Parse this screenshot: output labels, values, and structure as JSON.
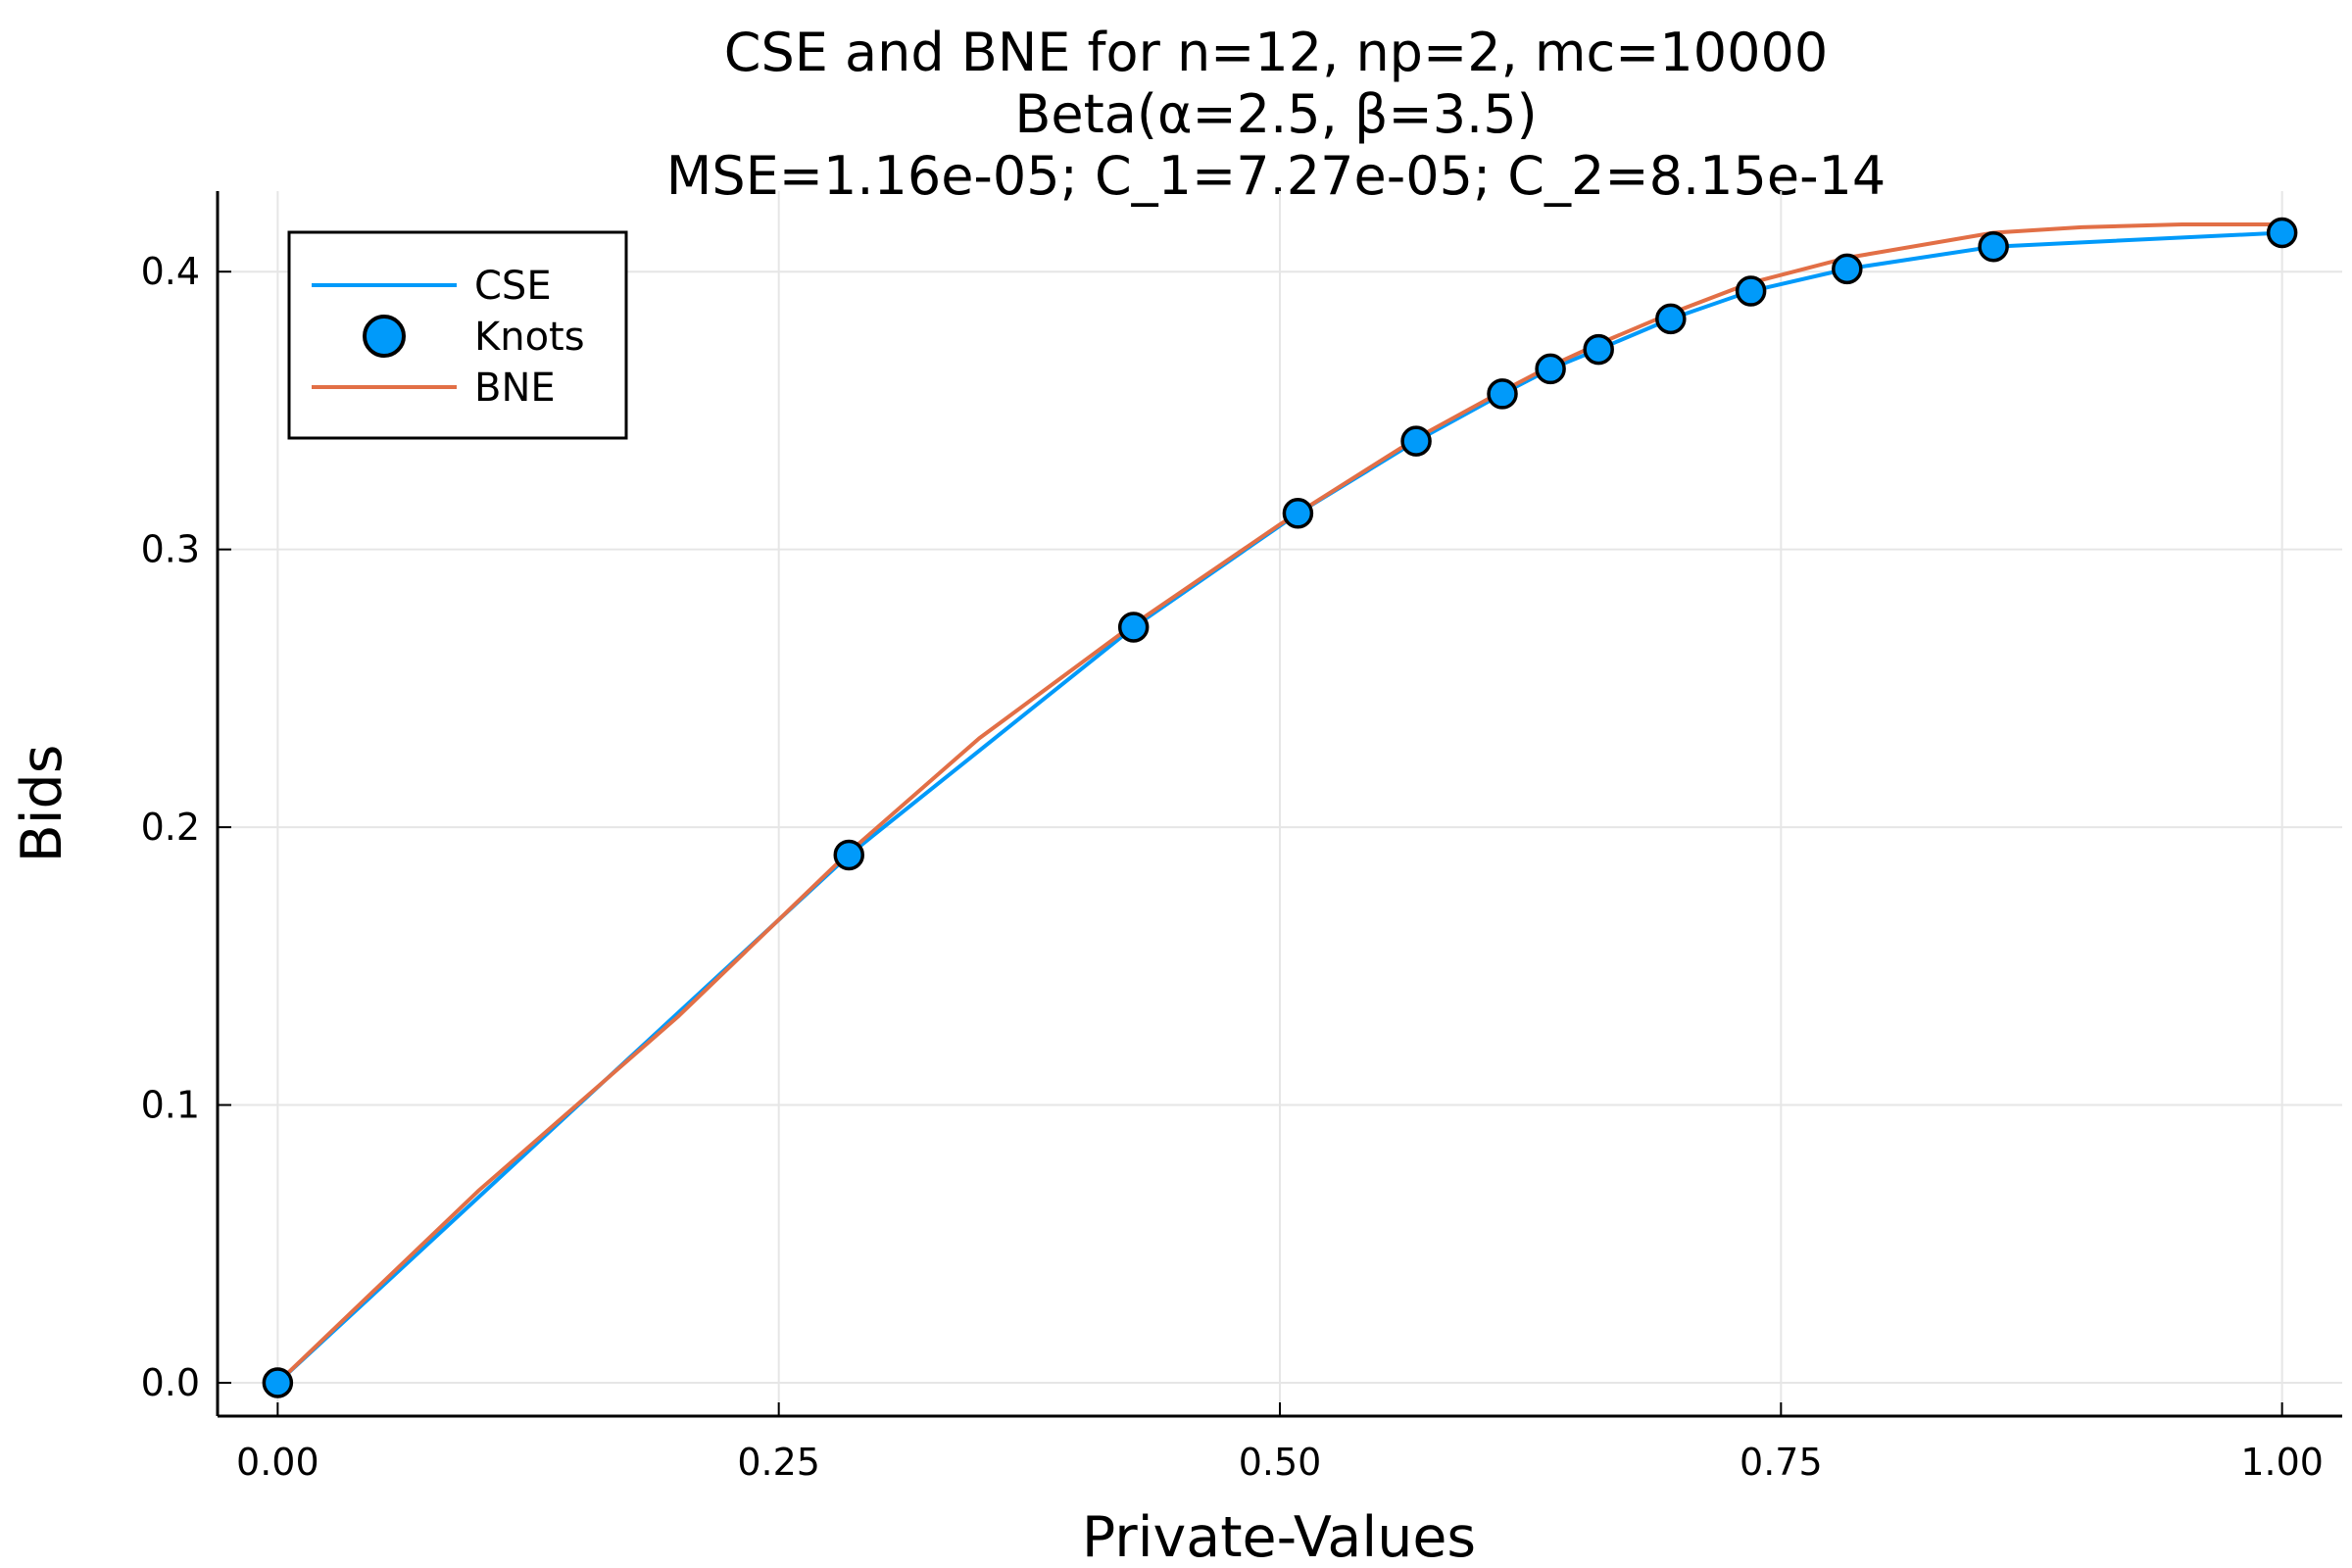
{
  "chart_data": {
    "type": "line",
    "title_lines": [
      "CSE and BNE for n=12, np=2, mc=10000",
      "Beta(α=2.5, β=3.5)",
      "MSE=1.16e-05; C_1=7.27e-05; C_2=8.15e-14"
    ],
    "xlabel": "Private-Values",
    "ylabel": "Bids",
    "xlim": [
      -0.03,
      1.03
    ],
    "ylim": [
      -0.012,
      0.429
    ],
    "xticks": [
      0.0,
      0.25,
      0.5,
      0.75,
      1.0
    ],
    "xtick_labels": [
      "0.00",
      "0.25",
      "0.50",
      "0.75",
      "1.00"
    ],
    "yticks": [
      0.0,
      0.1,
      0.2,
      0.3,
      0.4
    ],
    "ytick_labels": [
      "0.0",
      "0.1",
      "0.2",
      "0.3",
      "0.4"
    ],
    "grid": true,
    "legend_position": "top-left",
    "series": [
      {
        "name": "CSE",
        "kind": "line",
        "color": "#009AFA",
        "x": [
          0.0,
          0.285,
          0.427,
          0.509,
          0.568,
          0.611,
          0.635,
          0.659,
          0.695,
          0.735,
          0.783,
          0.856,
          1.0
        ],
        "y": [
          0.0,
          0.19,
          0.272,
          0.313,
          0.339,
          0.356,
          0.365,
          0.372,
          0.383,
          0.393,
          0.401,
          0.409,
          0.414
        ]
      },
      {
        "name": "Knots",
        "kind": "scatter",
        "color": "#009AFA",
        "x": [
          0.0,
          0.285,
          0.427,
          0.509,
          0.568,
          0.611,
          0.635,
          0.659,
          0.695,
          0.735,
          0.783,
          0.856,
          1.0
        ],
        "y": [
          0.0,
          0.19,
          0.272,
          0.313,
          0.339,
          0.356,
          0.365,
          0.372,
          0.383,
          0.393,
          0.401,
          0.409,
          0.414
        ]
      },
      {
        "name": "BNE",
        "kind": "line",
        "color": "#E26F46",
        "x": [
          0.0,
          0.1,
          0.2,
          0.285,
          0.35,
          0.427,
          0.5,
          0.568,
          0.611,
          0.635,
          0.659,
          0.695,
          0.735,
          0.783,
          0.856,
          0.9,
          0.95,
          1.0
        ],
        "y": [
          0.0,
          0.069,
          0.132,
          0.191,
          0.232,
          0.273,
          0.309,
          0.34,
          0.357,
          0.366,
          0.374,
          0.385,
          0.396,
          0.405,
          0.414,
          0.416,
          0.417,
          0.417
        ]
      }
    ]
  }
}
